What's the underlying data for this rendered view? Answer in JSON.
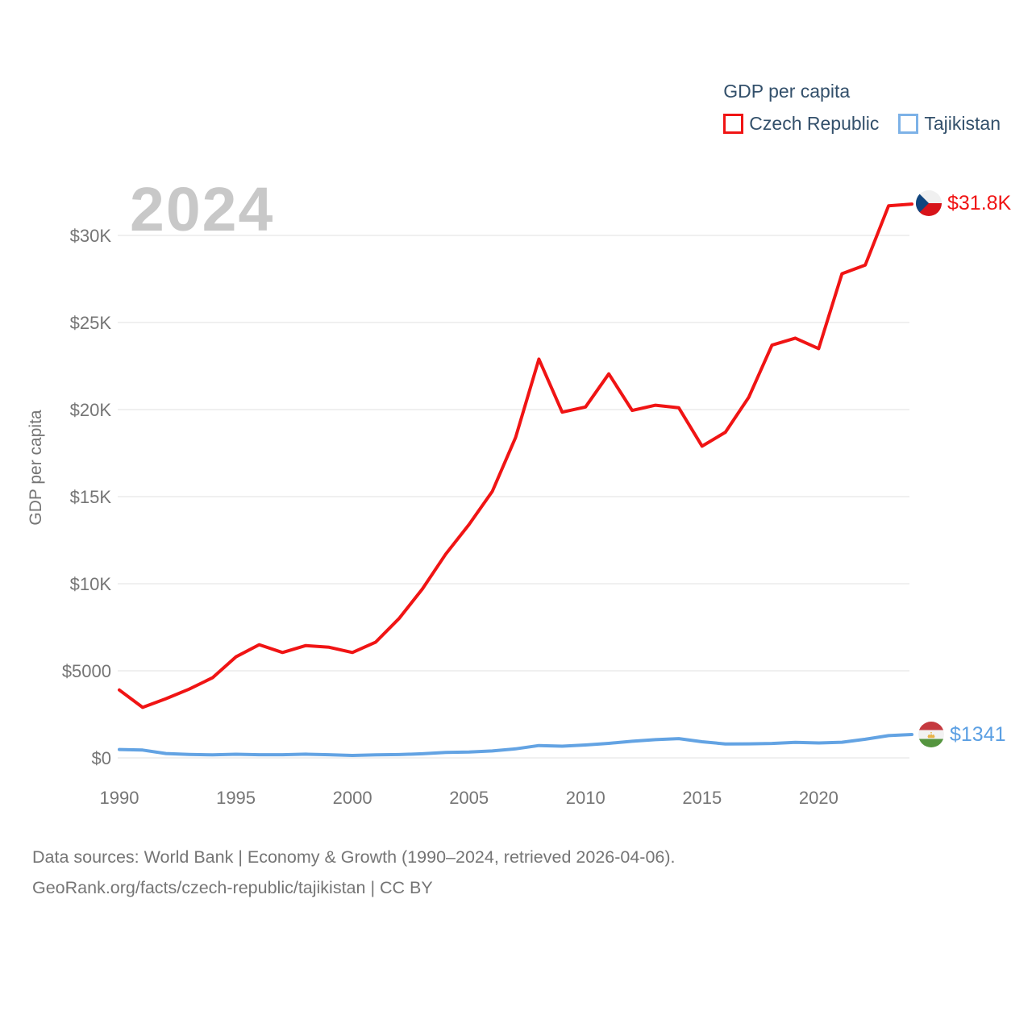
{
  "watermark": "2024",
  "footer": {
    "line1": "Data sources: World Bank | Economy & Growth (1990–2024, retrieved 2026-04-06).",
    "line2": "GeoRank.org/facts/czech-republic/tajikistan | CC BY"
  },
  "chart_data": {
    "type": "line",
    "title": "GDP per capita",
    "ylabel": "GDP per capita",
    "xlabel": "",
    "grid": "horizontal",
    "legend_position": "top-right",
    "xlim": [
      1990,
      2024
    ],
    "ylim": [
      0,
      30000
    ],
    "x_ticks": [
      1990,
      1995,
      2000,
      2005,
      2010,
      2015,
      2020
    ],
    "y_ticks": [
      {
        "label": "$0",
        "value": 0
      },
      {
        "label": "$5000",
        "value": 5000
      },
      {
        "label": "$10K",
        "value": 10000
      },
      {
        "label": "$15K",
        "value": 15000
      },
      {
        "label": "$20K",
        "value": 20000
      },
      {
        "label": "$25K",
        "value": 25000
      },
      {
        "label": "$30K",
        "value": 30000
      }
    ],
    "x": [
      1990,
      1991,
      1992,
      1993,
      1994,
      1995,
      1996,
      1997,
      1998,
      1999,
      2000,
      2001,
      2002,
      2003,
      2004,
      2005,
      2006,
      2007,
      2008,
      2009,
      2010,
      2011,
      2012,
      2013,
      2014,
      2015,
      2016,
      2017,
      2018,
      2019,
      2020,
      2021,
      2022,
      2023,
      2024
    ],
    "series": [
      {
        "name": "Czech Republic",
        "color": "#f01414",
        "end_label": "$31.8K",
        "flag_icon": "czech-flag-icon",
        "values": [
          3900,
          2900,
          3400,
          3950,
          4600,
          5800,
          6500,
          6050,
          6450,
          6350,
          6050,
          6650,
          8000,
          9700,
          11700,
          13400,
          15300,
          18400,
          22900,
          19850,
          20150,
          22050,
          19950,
          20250,
          20100,
          17900,
          18700,
          20700,
          23700,
          24100,
          23500,
          27800,
          28300,
          31700,
          31800
        ]
      },
      {
        "name": "Tajikistan",
        "color": "#63a3e3",
        "end_label": "$1341",
        "flag_icon": "tajikistan-flag-icon",
        "values": [
          480,
          450,
          250,
          200,
          170,
          210,
          180,
          180,
          215,
          180,
          140,
          170,
          190,
          235,
          310,
          340,
          400,
          520,
          710,
          670,
          740,
          835,
          955,
          1045,
          1105,
          925,
          800,
          805,
          830,
          890,
          855,
          900,
          1070,
          1280,
          1341
        ]
      }
    ]
  }
}
